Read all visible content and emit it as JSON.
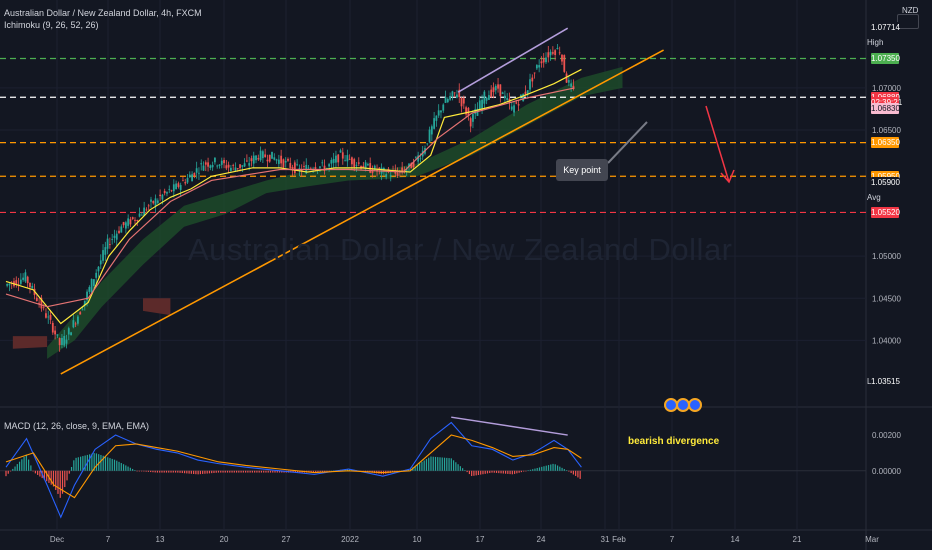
{
  "header": {
    "title": "Australian Dollar / New Zealand Dollar, 4h, FXCM",
    "indicator": "Ichimoku (9, 26, 52, 26)"
  },
  "watermark": "Australian Dollar / New Zealand Dollar",
  "currency": "NZD",
  "annotations": {
    "key_point": "Key point",
    "divergence": "bearish divergence"
  },
  "macd_label": "MACD (12, 26, close, 9, EMA, EMA)",
  "side_labels": {
    "high": "High",
    "avg": "Avg",
    "low": "Low"
  },
  "price_badges": [
    {
      "label": "1.07714",
      "color": "#131722",
      "price": 1.07714
    },
    {
      "label": "1.07350",
      "color": "#4caf50",
      "price": 1.0735
    },
    {
      "label": "1.06889",
      "color": "#f23645",
      "price": 1.06889
    },
    {
      "label": "02:39:21",
      "color": "#f23645",
      "price": 1.0683
    },
    {
      "label": "1.06830",
      "color": "#f8bbd0",
      "price": 1.0675
    },
    {
      "label": "1.06350",
      "color": "#ff9800",
      "price": 1.0635
    },
    {
      "label": "1.05950",
      "color": "#ff9800",
      "price": 1.0595
    },
    {
      "label": "1.05900",
      "color": "#131722",
      "price": 1.0588
    },
    {
      "label": "1.05520",
      "color": "#f23645",
      "price": 1.0552
    },
    {
      "label": "1.03515",
      "color": "#131722",
      "price": 1.03515
    }
  ],
  "chart_data": [
    {
      "type": "candlestick",
      "title": "Australian Dollar / New Zealand Dollar, 4h, FXCM",
      "y_ticks": [
        "1.07714",
        "1.07350",
        "1.07000",
        "1.06889",
        "1.06830",
        "1.06500",
        "1.06350",
        "1.05950",
        "1.05900",
        "1.05520",
        "1.05000",
        "1.04500",
        "1.04000",
        "1.03515"
      ],
      "y_tick_values": [
        1.07714,
        1.0735,
        1.07,
        1.06889,
        1.0683,
        1.065,
        1.0635,
        1.0595,
        1.059,
        1.0552,
        1.05,
        1.045,
        1.04,
        1.03515
      ],
      "x_ticks": [
        "Dec",
        "7",
        "13",
        "20",
        "27",
        "2022",
        "10",
        "17",
        "24",
        "31",
        "Feb",
        "7",
        "14",
        "21",
        "Mar"
      ],
      "ylim": [
        1.0335,
        1.0795
      ],
      "high": 1.07714,
      "low": 1.03515,
      "last": 1.06889,
      "horizontal_levels": [
        {
          "price": 1.0735,
          "color": "#4caf50"
        },
        {
          "price": 1.06889,
          "color": "#ffffff"
        },
        {
          "price": 1.0635,
          "color": "#ff9800"
        },
        {
          "price": 1.0595,
          "color": "#ff9800"
        },
        {
          "price": 1.0552,
          "color": "#f23645"
        }
      ],
      "price_path": [
        [
          0,
          1.0465
        ],
        [
          3,
          1.0475
        ],
        [
          5,
          1.0445
        ],
        [
          7,
          1.0415
        ],
        [
          8,
          1.0395
        ],
        [
          9,
          1.0405
        ],
        [
          11,
          1.0435
        ],
        [
          13,
          1.0475
        ],
        [
          15,
          1.0515
        ],
        [
          17,
          1.0535
        ],
        [
          19,
          1.0545
        ],
        [
          21,
          1.056
        ],
        [
          23,
          1.0572
        ],
        [
          25,
          1.0582
        ],
        [
          27,
          1.0595
        ],
        [
          29,
          1.061
        ],
        [
          31,
          1.0612
        ],
        [
          33,
          1.0605
        ],
        [
          35,
          1.0608
        ],
        [
          37,
          1.062
        ],
        [
          39,
          1.0618
        ],
        [
          41,
          1.061
        ],
        [
          43,
          1.0602
        ],
        [
          45,
          1.0608
        ],
        [
          47,
          1.0605
        ],
        [
          49,
          1.062
        ],
        [
          51,
          1.0612
        ],
        [
          53,
          1.0605
        ],
        [
          55,
          1.06
        ],
        [
          57,
          1.0598
        ],
        [
          59,
          1.0605
        ],
        [
          61,
          1.0625
        ],
        [
          63,
          1.0665
        ],
        [
          64,
          1.0682
        ],
        [
          66,
          1.0695
        ],
        [
          68,
          1.066
        ],
        [
          70,
          1.069
        ],
        [
          72,
          1.07
        ],
        [
          74,
          1.0675
        ],
        [
          76,
          1.0695
        ],
        [
          78,
          1.073
        ],
        [
          80,
          1.0745
        ],
        [
          81,
          1.0745
        ],
        [
          82,
          1.071
        ],
        [
          83,
          1.0695
        ]
      ],
      "series": [
        {
          "name": "Ichimoku (9, 26, 52, 26)",
          "color": "#ffeb3b",
          "values": [
            [
              0,
              1.047
            ],
            [
              4,
              1.046
            ],
            [
              8,
              1.042
            ],
            [
              12,
              1.0445
            ],
            [
              15,
              1.05
            ],
            [
              18,
              1.053
            ],
            [
              21,
              1.0555
            ],
            [
              24,
              1.057
            ],
            [
              27,
              1.058
            ],
            [
              30,
              1.0595
            ],
            [
              33,
              1.06
            ],
            [
              36,
              1.0605
            ],
            [
              40,
              1.0605
            ],
            [
              44,
              1.06
            ],
            [
              48,
              1.0605
            ],
            [
              52,
              1.0605
            ],
            [
              56,
              1.0602
            ],
            [
              59,
              1.06
            ],
            [
              62,
              1.062
            ],
            [
              64,
              1.0665
            ],
            [
              68,
              1.0672
            ],
            [
              72,
              1.068
            ],
            [
              76,
              1.0692
            ],
            [
              80,
              1.0705
            ],
            [
              84,
              1.0722
            ]
          ]
        },
        {
          "name": "Ichimoku (9, 26, 52, 26)",
          "color": "#e57373",
          "values": [
            [
              0,
              1.0455
            ],
            [
              6,
              1.044
            ],
            [
              12,
              1.045
            ],
            [
              18,
              1.052
            ],
            [
              24,
              1.0565
            ],
            [
              30,
              1.059
            ],
            [
              40,
              1.0603
            ],
            [
              50,
              1.0603
            ],
            [
              58,
              1.06
            ],
            [
              63,
              1.064
            ],
            [
              68,
              1.067
            ],
            [
              76,
              1.0688
            ],
            [
              83,
              1.07
            ]
          ]
        }
      ],
      "trendlines": [
        {
          "color": "#ff9800",
          "from": [
            8,
            1.036
          ],
          "to": [
            96,
            1.0745
          ]
        },
        {
          "color": "#b39ddb",
          "from": [
            66,
            1.0695
          ],
          "to": [
            82,
            1.0771
          ]
        }
      ]
    },
    {
      "type": "bar",
      "title": "MACD (12, 26, close, 9, EMA, EMA)",
      "y_ticks": [
        "0.00200",
        "0.00000"
      ],
      "y_tick_values": [
        0.002,
        0.0
      ],
      "ylim": [
        -0.0032,
        0.0034
      ],
      "series": [
        {
          "name": "MACD",
          "color": "#2962ff",
          "values": [
            [
              0,
              0.0002
            ],
            [
              3,
              0.0018
            ],
            [
              6,
              -0.0008
            ],
            [
              8,
              -0.0026
            ],
            [
              10,
              -0.0008
            ],
            [
              13,
              0.0012
            ],
            [
              16,
              0.002
            ],
            [
              19,
              0.0015
            ],
            [
              22,
              0.0012
            ],
            [
              25,
              0.001
            ],
            [
              28,
              0.0006
            ],
            [
              31,
              0.0004
            ],
            [
              35,
              0.0002
            ],
            [
              40,
              0.0
            ],
            [
              45,
              -0.0002
            ],
            [
              50,
              0.0001
            ],
            [
              55,
              -0.0003
            ],
            [
              59,
              0.0001
            ],
            [
              62,
              0.0018
            ],
            [
              65,
              0.0027
            ],
            [
              68,
              0.0014
            ],
            [
              71,
              0.0012
            ],
            [
              74,
              0.0006
            ],
            [
              77,
              0.001
            ],
            [
              80,
              0.0017
            ],
            [
              82,
              0.0012
            ],
            [
              84,
              0.0002
            ]
          ]
        },
        {
          "name": "Signal",
          "color": "#ff9800",
          "values": [
            [
              0,
              0.0005
            ],
            [
              4,
              0.001
            ],
            [
              7,
              -0.0008
            ],
            [
              10,
              -0.0015
            ],
            [
              13,
              0.0002
            ],
            [
              16,
              0.0014
            ],
            [
              19,
              0.0015
            ],
            [
              22,
              0.0013
            ],
            [
              25,
              0.0011
            ],
            [
              28,
              0.0008
            ],
            [
              31,
              0.0005
            ],
            [
              35,
              0.0003
            ],
            [
              40,
              0.0001
            ],
            [
              45,
              -0.0001
            ],
            [
              50,
              0.0
            ],
            [
              55,
              -0.0001
            ],
            [
              59,
              0.0
            ],
            [
              62,
              0.001
            ],
            [
              65,
              0.002
            ],
            [
              68,
              0.0017
            ],
            [
              71,
              0.0013
            ],
            [
              74,
              0.0008
            ],
            [
              77,
              0.0009
            ],
            [
              80,
              0.0013
            ],
            [
              82,
              0.0012
            ],
            [
              84,
              0.0007
            ]
          ]
        }
      ]
    }
  ]
}
